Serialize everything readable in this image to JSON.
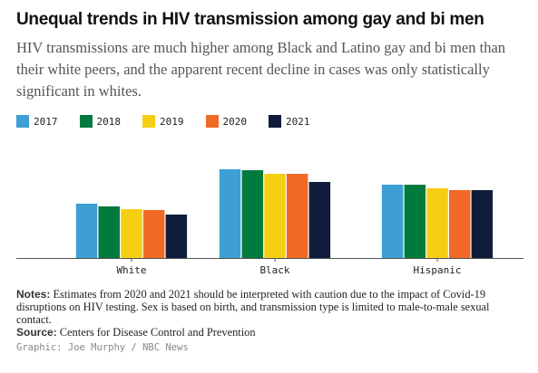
{
  "header": {
    "title": "Unequal trends in HIV transmission among gay and bi men",
    "subtitle": "HIV transmissions are much higher among Black and Latino gay and bi men than their white peers, and the apparent recent decline in cases was only statistically significant in whites."
  },
  "legend": [
    {
      "label": "2017",
      "color": "#3d9fd4"
    },
    {
      "label": "2018",
      "color": "#007a3d"
    },
    {
      "label": "2019",
      "color": "#f5ce14"
    },
    {
      "label": "2020",
      "color": "#f06a26"
    },
    {
      "label": "2021",
      "color": "#101d3a"
    }
  ],
  "chart_data": {
    "type": "bar",
    "categories": [
      "White",
      "Black",
      "Hispanic"
    ],
    "series": [
      {
        "name": "2017",
        "values": [
          6.0,
          9.8,
          8.1
        ]
      },
      {
        "name": "2018",
        "values": [
          5.7,
          9.7,
          8.1
        ]
      },
      {
        "name": "2019",
        "values": [
          5.4,
          9.3,
          7.7
        ]
      },
      {
        "name": "2020",
        "values": [
          5.3,
          9.3,
          7.5
        ]
      },
      {
        "name": "2021",
        "values": [
          4.8,
          8.4,
          7.5
        ]
      }
    ],
    "ylim": [
      0,
      10
    ],
    "grid": false,
    "legend_position": "top-left"
  },
  "footer": {
    "notes_label": "Notes:",
    "notes_text": "Estimates from 2020 and 2021 should be interpreted with caution due to the impact of Covid-19 disruptions on HIV testing. Sex is based on birth, and transmission type is limited to male-to-male sexual contact.",
    "source_label": "Source:",
    "source_text": "Centers for Disease Control and Prevention",
    "credit": "Graphic: Joe Murphy / NBC News"
  }
}
